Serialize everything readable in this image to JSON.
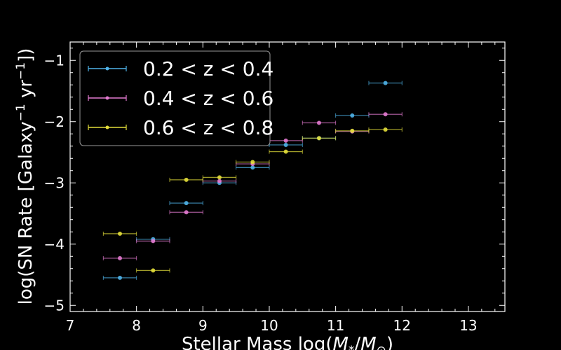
{
  "chart_data": {
    "type": "scatter",
    "xlabel": "Stellar Mass log(M*/M⊙)",
    "ylabel": "log(SN Rate [Galaxy⁻¹ yr⁻¹])",
    "xlim": [
      7,
      13.55
    ],
    "ylim": [
      -5.1,
      -0.7
    ],
    "x_ticks": [
      7,
      8,
      9,
      10,
      11,
      12,
      13
    ],
    "y_ticks": [
      -5,
      -4,
      -3,
      -2,
      -1
    ],
    "y_tick_labels": [
      "−5",
      "−4",
      "−3",
      "−2",
      "−1"
    ],
    "grid": false,
    "legend_position": "top-left",
    "bin_halfwidth": 0.25,
    "series": [
      {
        "name": "0.2 < z < 0.4",
        "color": "#4fb3e8",
        "points": [
          {
            "x": 7.75,
            "y": -4.55
          },
          {
            "x": 8.25,
            "y": -3.92
          },
          {
            "x": 8.75,
            "y": -3.33
          },
          {
            "x": 9.25,
            "y": -3.0
          },
          {
            "x": 9.75,
            "y": -2.75
          },
          {
            "x": 10.25,
            "y": -2.38
          },
          {
            "x": 10.75,
            "y": -2.27
          },
          {
            "x": 11.25,
            "y": -1.9
          },
          {
            "x": 11.75,
            "y": -1.37
          }
        ]
      },
      {
        "name": "0.4 < z < 0.6",
        "color": "#e37ad0",
        "points": [
          {
            "x": 7.75,
            "y": -4.23
          },
          {
            "x": 8.25,
            "y": -3.95
          },
          {
            "x": 8.75,
            "y": -3.48
          },
          {
            "x": 9.25,
            "y": -2.97
          },
          {
            "x": 9.75,
            "y": -2.69
          },
          {
            "x": 10.25,
            "y": -2.31
          },
          {
            "x": 10.75,
            "y": -2.02
          },
          {
            "x": 11.25,
            "y": -2.16
          },
          {
            "x": 11.75,
            "y": -1.88
          }
        ]
      },
      {
        "name": "0.6 < z < 0.8",
        "color": "#e3de3a",
        "points": [
          {
            "x": 7.75,
            "y": -3.83
          },
          {
            "x": 8.25,
            "y": -4.43
          },
          {
            "x": 8.75,
            "y": -2.95
          },
          {
            "x": 9.25,
            "y": -2.91
          },
          {
            "x": 9.75,
            "y": -2.66
          },
          {
            "x": 10.25,
            "y": -2.49
          },
          {
            "x": 10.75,
            "y": -2.27
          },
          {
            "x": 11.25,
            "y": -2.15
          },
          {
            "x": 11.75,
            "y": -2.13
          }
        ]
      }
    ]
  }
}
